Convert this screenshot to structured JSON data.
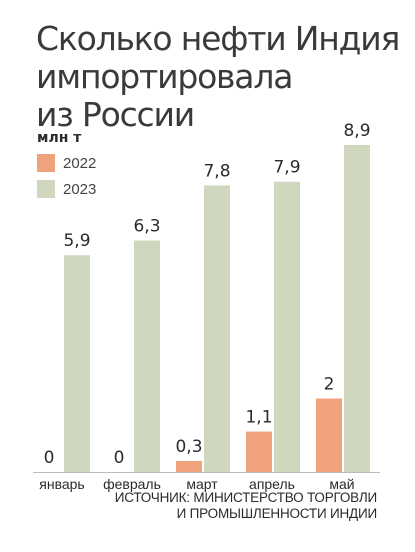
{
  "chart_data": {
    "type": "bar",
    "title_lines": [
      "Сколько нефти Индия",
      "импортировала",
      "из России"
    ],
    "ylabel": "млн т",
    "categories": [
      "январь",
      "февраль",
      "март",
      "апрель",
      "май"
    ],
    "series": [
      {
        "name": "2022",
        "values": [
          0,
          0,
          0.3,
          1.1,
          2
        ],
        "labels": [
          "0",
          "0",
          "0,3",
          "1,1",
          "2"
        ],
        "color": "#f0a27c"
      },
      {
        "name": "2023",
        "values": [
          5.9,
          6.3,
          7.8,
          7.9,
          8.9
        ],
        "labels": [
          "5,9",
          "6,3",
          "7,8",
          "7,9",
          "8,9"
        ],
        "color": "#cfd8bf"
      }
    ],
    "ylim": [
      0,
      8.9
    ],
    "grid": false,
    "legend_position": "top-left",
    "source_lines": [
      "ИСТОЧНИК: МИНИСТЕРСТВО ТОРГОВЛИ",
      "И ПРОМЫШЛЕННОСТИ ИНДИИ"
    ]
  }
}
